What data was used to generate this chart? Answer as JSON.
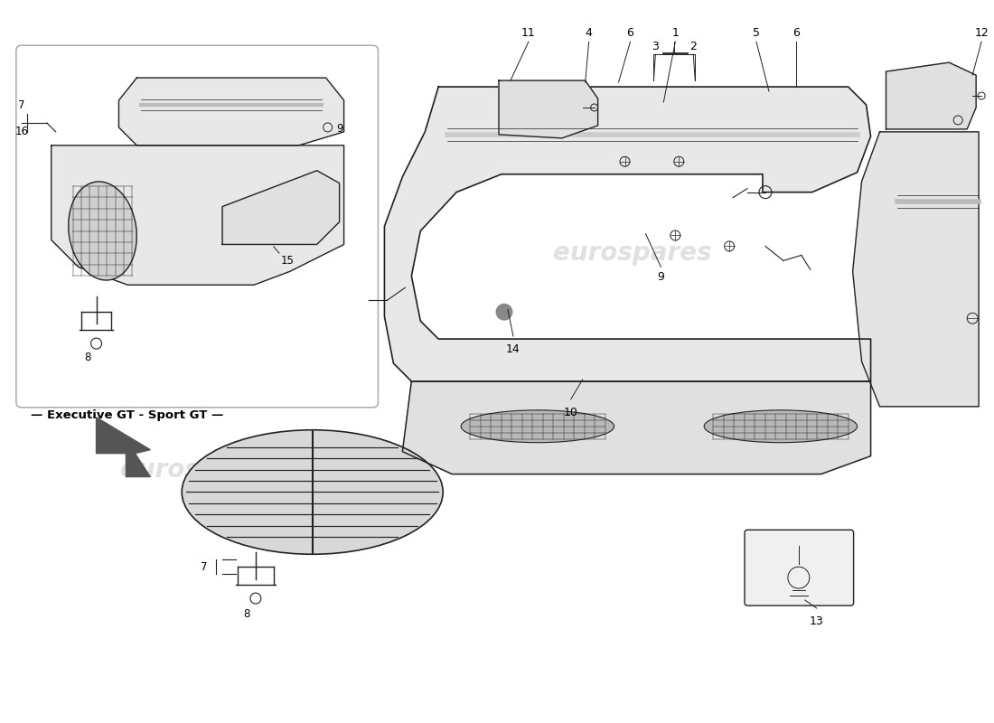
{
  "background_color": "#ffffff",
  "watermark_text": "eurospares",
  "watermark_color": "#cccccc",
  "box_label": "Executive GT - Sport GT",
  "line_color": "#222222",
  "box_border_color": "#aaaaaa",
  "text_color": "#000000",
  "light_gray": "#e8e8e8",
  "mid_gray": "#d0d0d0",
  "dark_gray": "#888888"
}
